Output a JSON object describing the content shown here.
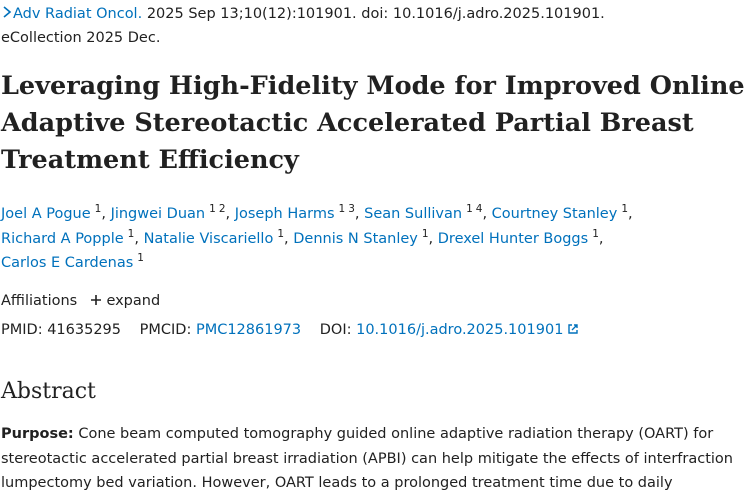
{
  "citation": {
    "journal": "Adv Radiat Oncol.",
    "details": "2025 Sep 13;10(12):101901. doi: 10.1016/j.adro.2025.101901.",
    "ecollection": "eCollection 2025 Dec."
  },
  "title_lines": [
    "Leveraging High-Fidelity Mode for Improved Online",
    "Adaptive Stereotactic Accelerated Partial Breast",
    "Treatment Efficiency"
  ],
  "separator": ",",
  "author_lines": [
    [
      {
        "name": "Joel A Pogue",
        "affiliations": [
          "1"
        ]
      },
      {
        "name": "Jingwei Duan",
        "affiliations": [
          "1",
          "2"
        ]
      },
      {
        "name": "Joseph Harms",
        "affiliations": [
          "1",
          "3"
        ]
      },
      {
        "name": "Sean Sullivan",
        "affiliations": [
          "1",
          "4"
        ]
      },
      {
        "name": "Courtney Stanley",
        "affiliations": [
          "1"
        ]
      }
    ],
    [
      {
        "name": "Richard A Popple",
        "affiliations": [
          "1"
        ]
      },
      {
        "name": "Natalie Viscariello",
        "affiliations": [
          "1"
        ]
      },
      {
        "name": "Dennis N Stanley",
        "affiliations": [
          "1"
        ]
      },
      {
        "name": "Drexel Hunter Boggs",
        "affiliations": [
          "1"
        ]
      }
    ],
    [
      {
        "name": "Carlos E Cardenas",
        "affiliations": [
          "1"
        ]
      }
    ]
  ],
  "affiliations": {
    "label": "Affiliations",
    "toggle": "expand"
  },
  "identifiers": {
    "pmid_label": "PMID:",
    "pmid": "41635295",
    "pmcid_label": "PMCID:",
    "pmcid": "PMC12861973",
    "doi_label": "DOI:",
    "doi": "10.1016/j.adro.2025.101901"
  },
  "abstract": {
    "heading": "Abstract",
    "label": "Purpose:",
    "lines": [
      "Cone beam computed tomography guided online adaptive radiation therapy (OART) for",
      "stereotactic accelerated partial breast irradiation (APBI) can help mitigate the effects of interfraction",
      "lumpectomy bed variation. However, OART leads to a prolonged treatment time due to daily"
    ]
  }
}
